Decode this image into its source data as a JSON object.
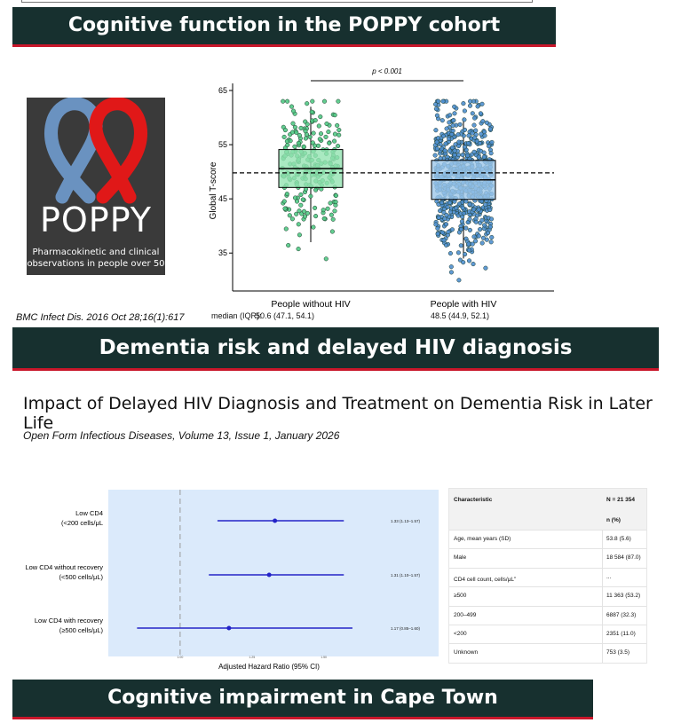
{
  "banners": {
    "b1": "Cognitive function in the POPPY cohort",
    "b2": "Dementia risk and delayed HIV diagnosis",
    "b3": "Cognitive impairment in Cape Town"
  },
  "logo": {
    "word": "POPPY",
    "subtitle_line1": "Pharmacokinetic and clinical",
    "subtitle_line2": "observations in people over 50"
  },
  "citation": "BMC Infect Dis. 2016 Oct 28;16(1):617",
  "paper": {
    "title": "Impact of Delayed HIV Diagnosis and Treatment on Dementia Risk in Later Life",
    "journal": "Open Form Infectious Diseases, Volume 13, Issue 1, January 2026"
  },
  "median_label": "median (IQR):",
  "chart_data": [
    {
      "type": "box",
      "ylabel": "Global T-score",
      "ylim": [
        28,
        65
      ],
      "yticks": [
        35,
        45,
        55,
        65
      ],
      "reference_line": 49.8,
      "significance": "p < 0.001",
      "groups": [
        {
          "name": "People without HIV",
          "median": 50.6,
          "q1": 47.1,
          "q3": 54.1,
          "whisker_low": 37,
          "whisker_high": 62,
          "summary": "50.6 (47.1, 54.1)",
          "color": "#93e3b2",
          "point_color": "#52c985",
          "n_points": 230
        },
        {
          "name": "People with HIV",
          "median": 48.5,
          "q1": 44.9,
          "q3": 52.1,
          "whisker_low": 34,
          "whisker_high": 60,
          "summary": "48.5 (44.9, 52.1)",
          "color": "#9cc7ea",
          "point_color": "#4f8fcf",
          "n_points": 650
        }
      ]
    },
    {
      "type": "forest",
      "xlabel": "Adjusted Hazard Ratio (95% CI)",
      "xlim": [
        0.75,
        1.9
      ],
      "xticks": [
        1.0,
        1.25,
        1.5
      ],
      "xtick_labels": [
        "1.00",
        "1.25",
        "1.50"
      ],
      "reference_line": 1.0,
      "rows": [
        {
          "label1": "Low CD4",
          "label2": "(<200 cells/μL",
          "hr": 1.33,
          "lo": 1.13,
          "hi": 1.57,
          "text": "1.33 (1.13–1.57)"
        },
        {
          "label1": "Low CD4 without recovery",
          "label2": "(<500 cells/μL)",
          "hr": 1.31,
          "lo": 1.1,
          "hi": 1.57,
          "text": "1.31 (1.10–1.57)"
        },
        {
          "label1": "Low CD4 with recovery",
          "label2": "(≥500 cells/μL)",
          "hr": 1.17,
          "lo": 0.85,
          "hi": 1.6,
          "text": "1.17 (0.85–1.60)"
        }
      ]
    },
    {
      "type": "table",
      "header": {
        "col1": "Characteristic",
        "col2": "N = 21 354",
        "col2b": "n (%)"
      },
      "rows": [
        {
          "c1": "Age, mean years (SD)",
          "c2": "53.8 (5.6)"
        },
        {
          "c1": "Male",
          "c2": "18 584 (87.0)"
        },
        {
          "c1": "CD4 cell count, cells/μL",
          "sup": "c",
          "c2": "..."
        },
        {
          "c1": "≥500",
          "c2": "11 363 (53.2)"
        },
        {
          "c1": "200–499",
          "c2": "6887 (32.3)"
        },
        {
          "c1": "<200",
          "c2": "2351 (11.0)"
        },
        {
          "c1": "Unknown",
          "c2": "753 (3.5)"
        }
      ]
    }
  ]
}
